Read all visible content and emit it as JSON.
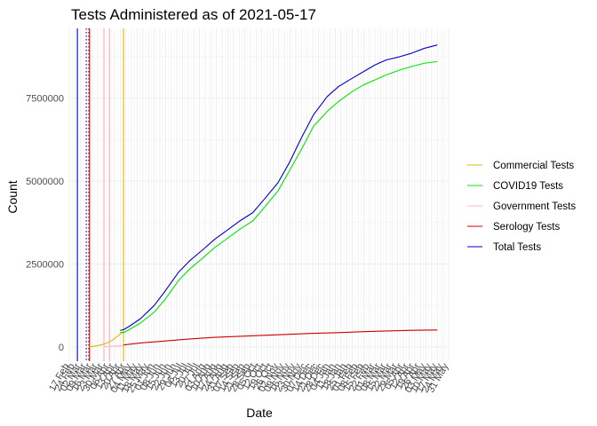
{
  "chart_data": {
    "type": "line",
    "title": "Tests Administered as of 2021-05-17",
    "xlabel": "Date",
    "ylabel": "Count",
    "xlim": [
      "2020-02-17",
      "2021-05-31"
    ],
    "ylim": [
      -430000,
      9600000
    ],
    "grid": true,
    "legend_position": "right",
    "y_ticks": [
      0,
      2500000,
      5000000,
      7500000
    ],
    "y_tick_labels": [
      "0",
      "2500000",
      "5000000",
      "7500000"
    ],
    "x_tick_dates": [
      "2020-02-17",
      "2020-02-24",
      "2020-03-02",
      "2020-03-09",
      "2020-03-16",
      "2020-03-23",
      "2020-03-30",
      "2020-04-06",
      "2020-04-13",
      "2020-04-20",
      "2020-04-27",
      "2020-05-04",
      "2020-05-11",
      "2020-05-18",
      "2020-05-25",
      "2020-06-01",
      "2020-06-08",
      "2020-06-15",
      "2020-06-22",
      "2020-06-29",
      "2020-07-06",
      "2020-07-13",
      "2020-07-20",
      "2020-07-27",
      "2020-08-03",
      "2020-08-10",
      "2020-08-17",
      "2020-08-24",
      "2020-08-31",
      "2020-09-07",
      "2020-09-14",
      "2020-09-21",
      "2020-09-28",
      "2020-10-05",
      "2020-10-12",
      "2020-10-19",
      "2020-10-26",
      "2020-11-02",
      "2020-11-09",
      "2020-11-16",
      "2020-11-23",
      "2020-11-30",
      "2020-12-07",
      "2020-12-14",
      "2020-12-21",
      "2020-12-28",
      "2021-01-04",
      "2021-01-11",
      "2021-01-18",
      "2021-01-25",
      "2021-02-01",
      "2021-02-08",
      "2021-02-15",
      "2021-02-22",
      "2021-03-01",
      "2021-03-08",
      "2021-03-15",
      "2021-03-22",
      "2021-03-29",
      "2021-04-05",
      "2021-04-12",
      "2021-04-19",
      "2021-04-26",
      "2021-05-03",
      "2021-05-10",
      "2021-05-17",
      "2021-05-24",
      "2021-05-31"
    ],
    "x_tick_labels": [
      "17 Feb",
      "24 Feb",
      "02 Mar",
      "09 Mar",
      "16 Mar",
      "23 Mar",
      "30 Mar",
      "06 Apr",
      "13 Apr",
      "20 Apr",
      "27 Apr",
      "04 May",
      "11 May",
      "18 May",
      "25 May",
      "01 Jun",
      "08 Jun",
      "15 Jun",
      "22 Jun",
      "29 Jun",
      "06 Jul",
      "13 Jul",
      "20 Jul",
      "27 Jul",
      "03 Aug",
      "10 Aug",
      "17 Aug",
      "24 Aug",
      "31 Aug",
      "07 Sep",
      "14 Sep",
      "21 Sep",
      "28 Sep",
      "05 Oct",
      "12 Oct",
      "19 Oct",
      "26 Oct",
      "02 Nov",
      "09 Nov",
      "16 Nov",
      "23 Nov",
      "30 Nov",
      "07 Dec",
      "14 Dec",
      "21 Dec",
      "28 Dec",
      "04 Jan",
      "11 Jan",
      "18 Jan",
      "25 Jan",
      "01 Feb",
      "08 Feb",
      "15 Feb",
      "22 Feb",
      "01 Mar",
      "08 Mar",
      "15 Mar",
      "22 Mar",
      "29 Mar",
      "05 Apr",
      "12 Apr",
      "19 Apr",
      "26 Apr",
      "03 May",
      "10 May",
      "17 May",
      "24 May",
      "31 May"
    ],
    "vertical_lines": [
      {
        "date": "2020-02-27",
        "color": "#0000cd",
        "style": "solid"
      },
      {
        "date": "2020-03-09",
        "color": "#0000cd",
        "style": "dotted"
      },
      {
        "date": "2020-03-12",
        "color": "#cc0000",
        "style": "dotted"
      },
      {
        "date": "2020-03-13",
        "color": "#cc0000",
        "style": "solid"
      },
      {
        "date": "2020-03-31",
        "color": "#ffb6c1",
        "style": "solid"
      },
      {
        "date": "2020-04-07",
        "color": "#ffb6c1",
        "style": "solid"
      },
      {
        "date": "2020-04-24",
        "color": "#e6b800",
        "style": "solid"
      }
    ],
    "series": [
      {
        "name": "Commercial Tests",
        "color": "#e6b800",
        "x": [
          "2020-03-13",
          "2020-03-20",
          "2020-03-27",
          "2020-04-03",
          "2020-04-10",
          "2020-04-17",
          "2020-04-24"
        ],
        "y": [
          0,
          30000,
          60000,
          110000,
          200000,
          330000,
          470000
        ]
      },
      {
        "name": "COVID19 Tests",
        "color": "#00e600",
        "x": [
          "2020-04-20",
          "2020-04-24",
          "2020-05-01",
          "2020-05-15",
          "2020-06-01",
          "2020-06-15",
          "2020-07-01",
          "2020-07-15",
          "2020-08-01",
          "2020-08-15",
          "2020-09-01",
          "2020-09-15",
          "2020-10-01",
          "2020-10-15",
          "2020-11-01",
          "2020-11-15",
          "2020-12-01",
          "2020-12-15",
          "2021-01-01",
          "2021-01-15",
          "2021-02-01",
          "2021-02-15",
          "2021-03-01",
          "2021-03-15",
          "2021-04-01",
          "2021-04-15",
          "2021-05-01",
          "2021-05-17"
        ],
        "y": [
          440000,
          430000,
          520000,
          720000,
          1050000,
          1450000,
          2000000,
          2350000,
          2700000,
          3000000,
          3300000,
          3550000,
          3800000,
          4200000,
          4700000,
          5300000,
          6000000,
          6650000,
          7100000,
          7400000,
          7700000,
          7900000,
          8050000,
          8200000,
          8350000,
          8450000,
          8550000,
          8600000
        ]
      },
      {
        "name": "Government Tests",
        "color": "#ffb6c1",
        "x": [
          "2020-03-31",
          "2020-04-24"
        ],
        "y": [
          10000,
          40000
        ]
      },
      {
        "name": "Serology Tests",
        "color": "#cc0000",
        "x": [
          "2020-04-24",
          "2020-05-15",
          "2020-06-15",
          "2020-07-15",
          "2020-08-15",
          "2020-09-15",
          "2020-10-15",
          "2020-11-15",
          "2020-12-15",
          "2021-01-15",
          "2021-02-15",
          "2021-03-15",
          "2021-04-15",
          "2021-05-17"
        ],
        "y": [
          60000,
          120000,
          180000,
          240000,
          290000,
          320000,
          350000,
          380000,
          410000,
          430000,
          460000,
          480000,
          500000,
          510000
        ]
      },
      {
        "name": "Total Tests",
        "color": "#0000cd",
        "x": [
          "2020-04-20",
          "2020-04-24",
          "2020-05-01",
          "2020-05-15",
          "2020-06-01",
          "2020-06-15",
          "2020-07-01",
          "2020-07-15",
          "2020-08-01",
          "2020-08-15",
          "2020-09-01",
          "2020-09-15",
          "2020-10-01",
          "2020-10-15",
          "2020-11-01",
          "2020-11-15",
          "2020-12-01",
          "2020-12-15",
          "2021-01-01",
          "2021-01-15",
          "2021-02-01",
          "2021-02-15",
          "2021-03-01",
          "2021-03-15",
          "2021-04-01",
          "2021-04-15",
          "2021-05-01",
          "2021-05-17"
        ],
        "y": [
          500000,
          520000,
          620000,
          850000,
          1250000,
          1700000,
          2250000,
          2600000,
          2950000,
          3250000,
          3550000,
          3800000,
          4050000,
          4450000,
          4950000,
          5550000,
          6350000,
          7000000,
          7550000,
          7850000,
          8100000,
          8300000,
          8500000,
          8650000,
          8750000,
          8850000,
          9000000,
          9100000
        ]
      }
    ]
  }
}
